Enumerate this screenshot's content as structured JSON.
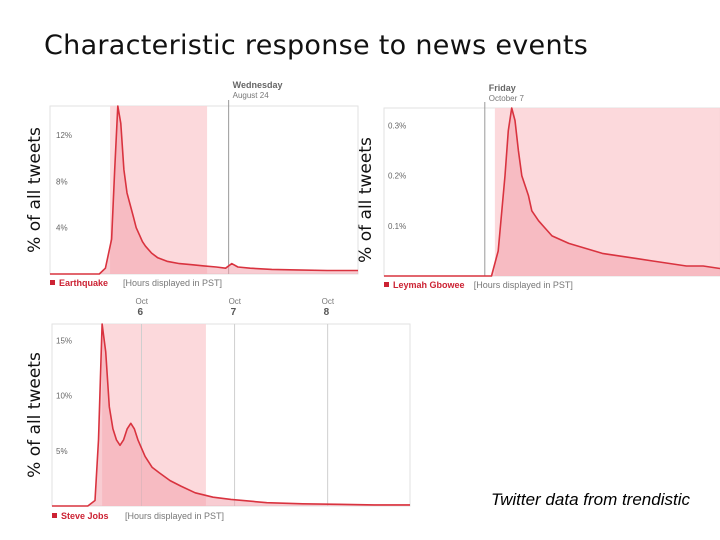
{
  "title": "Characteristic response to news events",
  "caption": "Twitter data from trendistic",
  "chart_data": [
    {
      "type": "line",
      "series_name": "Earthquake",
      "ylabel": "% of all tweets",
      "xlabel": "[Hours displayed in PST]",
      "y_ticks": [
        "12%",
        "8%",
        "4%"
      ],
      "y_tick_values": [
        12,
        8,
        4
      ],
      "ylim": [
        0,
        14.5
      ],
      "xlim": [
        0,
        100
      ],
      "day_marker": {
        "day": "Wednesday",
        "date": "August 24",
        "x": 58
      },
      "highlight_x": [
        19.5,
        51
      ],
      "x": [
        0,
        12,
        16,
        18,
        20,
        21,
        22,
        23,
        24,
        25,
        26,
        27,
        28,
        29,
        30,
        31,
        33,
        35,
        38,
        42,
        46,
        50,
        54,
        57,
        59,
        61,
        65,
        72,
        80,
        90,
        100
      ],
      "values": [
        0,
        0,
        0,
        0.5,
        3,
        9,
        14.5,
        13,
        9,
        7,
        6,
        5,
        4,
        3.4,
        2.8,
        2.4,
        1.8,
        1.4,
        1.1,
        0.9,
        0.8,
        0.7,
        0.6,
        0.5,
        0.9,
        0.6,
        0.5,
        0.4,
        0.35,
        0.3,
        0.3
      ]
    },
    {
      "type": "line",
      "series_name": "Leymah Gbowee",
      "ylabel": "% of all tweets",
      "xlabel": "[Hours displayed in PST]",
      "y_ticks": [
        "0.3%",
        "0.2%",
        "0.1%"
      ],
      "y_tick_values": [
        0.3,
        0.2,
        0.1
      ],
      "ylim": [
        0,
        0.335
      ],
      "xlim": [
        0,
        100
      ],
      "day_marker": {
        "day": "Friday",
        "date": "October 7",
        "x": 30
      },
      "highlight_x": [
        33,
        100
      ],
      "x": [
        0,
        28,
        32,
        34,
        36,
        37,
        38,
        39,
        40,
        41,
        43,
        44,
        46,
        48,
        50,
        55,
        60,
        65,
        70,
        75,
        80,
        85,
        90,
        95,
        100
      ],
      "values": [
        0,
        0,
        0,
        0.05,
        0.2,
        0.29,
        0.335,
        0.31,
        0.25,
        0.2,
        0.16,
        0.13,
        0.11,
        0.095,
        0.08,
        0.065,
        0.055,
        0.045,
        0.04,
        0.035,
        0.03,
        0.025,
        0.02,
        0.02,
        0.015
      ]
    },
    {
      "type": "line",
      "series_name": "Steve Jobs",
      "ylabel": "% of all tweets",
      "xlabel": "[Hours displayed in PST]",
      "y_ticks": [
        "15%",
        "10%",
        "5%"
      ],
      "y_tick_values": [
        15,
        10,
        5
      ],
      "ylim": [
        0,
        16.5
      ],
      "xlim": [
        0,
        100
      ],
      "x_labels": [
        {
          "date": "Oct",
          "day": "6",
          "x": 25
        },
        {
          "date": "Oct",
          "day": "7",
          "x": 51
        },
        {
          "date": "Oct",
          "day": "8",
          "x": 77
        }
      ],
      "highlight_x": [
        14,
        43
      ],
      "x": [
        0,
        10,
        12,
        13,
        14,
        15,
        16,
        17,
        18,
        19,
        20,
        21,
        22,
        23,
        24,
        26,
        28,
        30,
        33,
        36,
        40,
        45,
        50,
        60,
        70,
        80,
        90,
        100
      ],
      "values": [
        0,
        0,
        0.5,
        6,
        16.5,
        14,
        9,
        7,
        6,
        5.5,
        6,
        7,
        7.5,
        7,
        6,
        4.5,
        3.5,
        3,
        2.3,
        1.8,
        1.2,
        0.8,
        0.6,
        0.3,
        0.2,
        0.15,
        0.1,
        0.1
      ]
    }
  ]
}
